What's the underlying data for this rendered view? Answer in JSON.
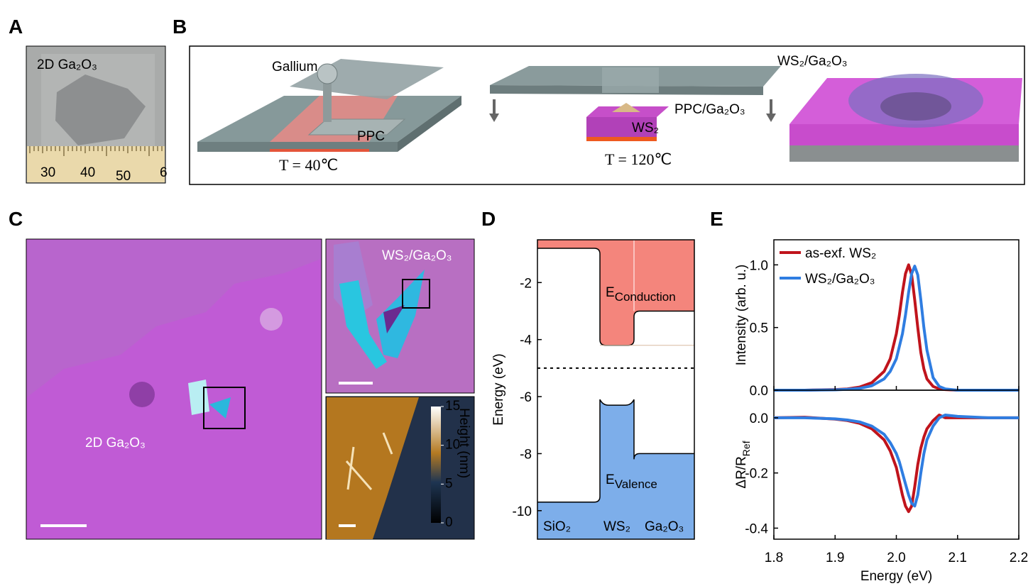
{
  "panel_labels": [
    "A",
    "B",
    "C",
    "D",
    "E"
  ],
  "panel_a": {
    "sample_label": "2D Ga₂O₃",
    "ruler_labels": [
      "30",
      "40",
      "50",
      "6"
    ]
  },
  "panel_b": {
    "gallium": "Gallium",
    "ppc": "PPC",
    "temp_1": "T = 40℃",
    "ppc_ga2o3": "PPC/Ga₂O₃",
    "ws2": "WS₂",
    "temp_2": "T = 120℃",
    "heterostructure": "WS₂/Ga₂O₃"
  },
  "panel_c": {
    "main_label": "2D Ga₂O₃",
    "inset_label": "WS₂/Ga₂O₃",
    "colorbar": {
      "label": "Height (nm)",
      "lim": [
        0,
        15
      ],
      "ticks": [
        0,
        5,
        10,
        15
      ]
    }
  },
  "chart_data": [
    {
      "type": "band",
      "ylabel": "Energy (eV)",
      "ylim": [
        -11,
        -0.5
      ],
      "yticks": [
        -2,
        -4,
        -6,
        -8,
        -10
      ],
      "regions": [
        "SiO₂",
        "WS₂",
        "Ga₂O₃"
      ],
      "conduction": [
        -0.8,
        -4.2,
        -3.0
      ],
      "valence": [
        -9.7,
        -6.3,
        -8.0
      ],
      "fermi": -5.0,
      "conduction_label": {
        "main": "E",
        "sub": "Conduction"
      },
      "valence_label": {
        "main": "E",
        "sub": "Valence"
      },
      "conduction_color": "#f4857c",
      "valence_color": "#7daeea"
    },
    {
      "type": "line",
      "ylabel": "Intensity (arb. u.)",
      "ylim": [
        0,
        1.2
      ],
      "yticks": [
        {
          "value": 0,
          "label": "0.0"
        },
        0.5,
        {
          "value": 1,
          "label": "1.0"
        }
      ],
      "legend": "upper left",
      "x": [
        1.8,
        1.85,
        1.9,
        1.92,
        1.94,
        1.96,
        1.98,
        1.99,
        2.0,
        2.005,
        2.01,
        2.015,
        2.02,
        2.025,
        2.03,
        2.035,
        2.04,
        2.045,
        2.05,
        2.06,
        2.07,
        2.08,
        2.1,
        2.15,
        2.2
      ],
      "series": [
        {
          "name": "as-exf. WS₂",
          "color": "#c0141c",
          "values": [
            0,
            0,
            0.005,
            0.01,
            0.025,
            0.06,
            0.15,
            0.25,
            0.45,
            0.6,
            0.78,
            0.93,
            1.0,
            0.92,
            0.72,
            0.5,
            0.3,
            0.17,
            0.09,
            0.03,
            0.01,
            0.005,
            0,
            0,
            0
          ]
        },
        {
          "name": "WS₂/Ga₂O₃",
          "color": "#2f7de1",
          "values": [
            0,
            0,
            0.003,
            0.007,
            0.015,
            0.035,
            0.09,
            0.15,
            0.25,
            0.35,
            0.45,
            0.6,
            0.78,
            0.93,
            0.99,
            0.92,
            0.72,
            0.5,
            0.32,
            0.1,
            0.03,
            0.01,
            0,
            0,
            0
          ]
        }
      ]
    },
    {
      "type": "line",
      "ylabel": {
        "main": "ΔR/R",
        "sub": "Ref"
      },
      "xlabel": "Energy (eV)",
      "xlim": [
        1.8,
        2.2
      ],
      "xticks": [
        1.8,
        1.9,
        {
          "value": 2,
          "label": "2.0"
        },
        2.1,
        2.2
      ],
      "ylim": [
        -0.44,
        0.1
      ],
      "yticks": [
        {
          "value": 0,
          "label": "0.0"
        },
        -0.2,
        -0.4
      ],
      "x": [
        1.8,
        1.85,
        1.9,
        1.92,
        1.94,
        1.96,
        1.98,
        1.99,
        2.0,
        2.005,
        2.01,
        2.015,
        2.02,
        2.025,
        2.03,
        2.035,
        2.04,
        2.045,
        2.05,
        2.06,
        2.07,
        2.08,
        2.1,
        2.15,
        2.2
      ],
      "series": [
        {
          "color": "#c0141c",
          "values": [
            0,
            0.002,
            -0.005,
            -0.01,
            -0.02,
            -0.04,
            -0.08,
            -0.12,
            -0.18,
            -0.23,
            -0.28,
            -0.32,
            -0.34,
            -0.32,
            -0.25,
            -0.17,
            -0.11,
            -0.07,
            -0.04,
            -0.01,
            0.01,
            0,
            0,
            0,
            0
          ]
        },
        {
          "color": "#2f7de1",
          "values": [
            0,
            0,
            -0.004,
            -0.008,
            -0.015,
            -0.03,
            -0.06,
            -0.09,
            -0.13,
            -0.16,
            -0.2,
            -0.24,
            -0.28,
            -0.31,
            -0.32,
            -0.28,
            -0.2,
            -0.13,
            -0.08,
            -0.03,
            0,
            0.01,
            0.005,
            0,
            0
          ]
        }
      ]
    }
  ]
}
